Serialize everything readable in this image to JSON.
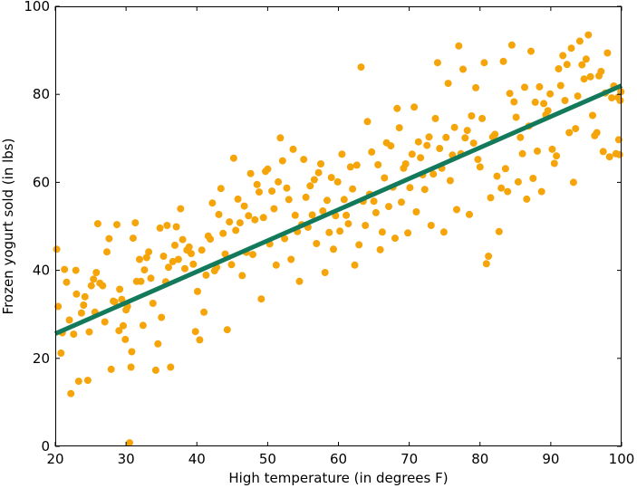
{
  "chart_data": {
    "type": "scatter",
    "title": "",
    "xlabel": "High temperature (in degrees F)",
    "ylabel": "Frozen yogurt sold (in lbs)",
    "xlim": [
      20,
      100
    ],
    "ylim": [
      0,
      100
    ],
    "xticks": [
      20,
      30,
      40,
      50,
      60,
      70,
      80,
      90,
      100
    ],
    "yticks": [
      0,
      20,
      40,
      60,
      80,
      100
    ],
    "grid": false,
    "legend": "none",
    "colors": {
      "points": "#f5a50a",
      "fit_line": "#13795b",
      "axes": "#000000"
    },
    "fit_line": {
      "x": [
        20,
        100
      ],
      "y": [
        25.6,
        82
      ]
    },
    "series": [
      {
        "points": [
          [
            20.2,
            44.8
          ],
          [
            20.4,
            31.8
          ],
          [
            20.8,
            21.2
          ],
          [
            21.0,
            25.8
          ],
          [
            21.3,
            40.2
          ],
          [
            21.6,
            37.3
          ],
          [
            22.0,
            28.7
          ],
          [
            22.2,
            12.0
          ],
          [
            22.6,
            25.5
          ],
          [
            22.9,
            40.0
          ],
          [
            23.0,
            34.6
          ],
          [
            23.3,
            14.8
          ],
          [
            23.7,
            30.3
          ],
          [
            24.0,
            32.1
          ],
          [
            24.2,
            34.0
          ],
          [
            24.6,
            15.0
          ],
          [
            24.8,
            26.0
          ],
          [
            25.1,
            36.5
          ],
          [
            25.4,
            38.0
          ],
          [
            25.6,
            30.5
          ],
          [
            25.8,
            39.5
          ],
          [
            26.0,
            50.6
          ],
          [
            26.3,
            37.1
          ],
          [
            26.7,
            36.5
          ],
          [
            27.0,
            28.3
          ],
          [
            27.3,
            44.2
          ],
          [
            27.6,
            47.2
          ],
          [
            27.9,
            17.5
          ],
          [
            28.2,
            33.0
          ],
          [
            28.4,
            32.8
          ],
          [
            28.7,
            50.4
          ],
          [
            29.0,
            26.3
          ],
          [
            29.1,
            35.7
          ],
          [
            29.4,
            33.4
          ],
          [
            29.6,
            27.4
          ],
          [
            29.9,
            24.3
          ],
          [
            30.0,
            31.0
          ],
          [
            30.2,
            31.8
          ],
          [
            30.5,
            0.8
          ],
          [
            30.7,
            18.0
          ],
          [
            30.8,
            21.5
          ],
          [
            31.0,
            47.3
          ],
          [
            31.3,
            50.8
          ],
          [
            31.5,
            37.5
          ],
          [
            31.9,
            42.5
          ],
          [
            32.1,
            37.5
          ],
          [
            32.4,
            27.5
          ],
          [
            32.6,
            40.1
          ],
          [
            32.9,
            42.9
          ],
          [
            33.2,
            44.2
          ],
          [
            33.5,
            38.2
          ],
          [
            33.8,
            32.5
          ],
          [
            34.2,
            17.3
          ],
          [
            34.5,
            23.3
          ],
          [
            34.8,
            49.6
          ],
          [
            35.0,
            29.3
          ],
          [
            35.3,
            43.2
          ],
          [
            35.6,
            37.4
          ],
          [
            35.8,
            50.2
          ],
          [
            36.0,
            40.7
          ],
          [
            36.3,
            18.0
          ],
          [
            36.6,
            42.0
          ],
          [
            36.9,
            45.7
          ],
          [
            37.1,
            49.9
          ],
          [
            37.4,
            42.5
          ],
          [
            37.7,
            54.0
          ],
          [
            38.0,
            47.0
          ],
          [
            38.3,
            40.4
          ],
          [
            38.6,
            44.6
          ],
          [
            38.9,
            45.3
          ],
          [
            39.2,
            43.8
          ],
          [
            39.5,
            41.4
          ],
          [
            39.8,
            26.1
          ],
          [
            40.1,
            35.2
          ],
          [
            40.4,
            24.2
          ],
          [
            40.7,
            44.6
          ],
          [
            41.0,
            30.5
          ],
          [
            41.3,
            38.9
          ],
          [
            41.6,
            47.8
          ],
          [
            41.9,
            47.1
          ],
          [
            42.2,
            55.3
          ],
          [
            42.5,
            39.9
          ],
          [
            42.8,
            40.7
          ],
          [
            43.1,
            52.7
          ],
          [
            43.4,
            58.6
          ],
          [
            43.7,
            48.4
          ],
          [
            44.0,
            43.7
          ],
          [
            44.3,
            26.5
          ],
          [
            44.6,
            51.0
          ],
          [
            44.9,
            41.3
          ],
          [
            45.2,
            65.5
          ],
          [
            45.5,
            49.1
          ],
          [
            45.8,
            56.2
          ],
          [
            46.1,
            50.8
          ],
          [
            46.4,
            38.8
          ],
          [
            46.7,
            54.6
          ],
          [
            47.0,
            44.1
          ],
          [
            47.3,
            52.4
          ],
          [
            47.6,
            62.0
          ],
          [
            47.9,
            43.6
          ],
          [
            48.2,
            51.5
          ],
          [
            48.5,
            59.5
          ],
          [
            48.8,
            57.8
          ],
          [
            49.1,
            33.5
          ],
          [
            49.4,
            52.0
          ],
          [
            49.7,
            62.5
          ],
          [
            50.0,
            63.0
          ],
          [
            50.3,
            46.0
          ],
          [
            50.6,
            58.0
          ],
          [
            50.9,
            54.0
          ],
          [
            51.2,
            41.2
          ],
          [
            51.5,
            60.1
          ],
          [
            51.8,
            70.1
          ],
          [
            52.1,
            64.9
          ],
          [
            52.4,
            47.2
          ],
          [
            52.7,
            58.7
          ],
          [
            53.0,
            56.1
          ],
          [
            53.3,
            42.5
          ],
          [
            53.6,
            67.5
          ],
          [
            53.9,
            52.5
          ],
          [
            54.2,
            48.8
          ],
          [
            54.5,
            37.5
          ],
          [
            54.8,
            50.4
          ],
          [
            55.1,
            65.2
          ],
          [
            55.4,
            56.6
          ],
          [
            55.7,
            49.8
          ],
          [
            56.0,
            59.2
          ],
          [
            56.3,
            52.6
          ],
          [
            56.6,
            60.6
          ],
          [
            56.9,
            46.1
          ],
          [
            57.2,
            62.2
          ],
          [
            57.5,
            64.2
          ],
          [
            57.8,
            53.5
          ],
          [
            58.1,
            39.5
          ],
          [
            58.4,
            55.9
          ],
          [
            58.7,
            48.6
          ],
          [
            59.0,
            61.1
          ],
          [
            59.3,
            44.8
          ],
          [
            59.6,
            52.4
          ],
          [
            59.9,
            60.1
          ],
          [
            60.2,
            48.9
          ],
          [
            60.5,
            66.4
          ],
          [
            60.8,
            56.1
          ],
          [
            61.1,
            52.5
          ],
          [
            61.4,
            50.6
          ],
          [
            61.7,
            63.5
          ],
          [
            62.0,
            58.5
          ],
          [
            62.3,
            41.2
          ],
          [
            62.6,
            63.9
          ],
          [
            62.9,
            45.8
          ],
          [
            63.2,
            86.2
          ],
          [
            63.5,
            55.7
          ],
          [
            63.8,
            50.2
          ],
          [
            64.1,
            73.8
          ],
          [
            64.4,
            57.3
          ],
          [
            64.7,
            66.9
          ],
          [
            65.0,
            55.7
          ],
          [
            65.3,
            53.1
          ],
          [
            65.6,
            64.0
          ],
          [
            65.9,
            44.7
          ],
          [
            66.2,
            48.7
          ],
          [
            66.5,
            61.0
          ],
          [
            66.8,
            69.0
          ],
          [
            67.1,
            54.5
          ],
          [
            67.4,
            68.3
          ],
          [
            67.7,
            58.9
          ],
          [
            68.0,
            47.3
          ],
          [
            68.3,
            76.8
          ],
          [
            68.6,
            72.4
          ],
          [
            68.9,
            55.5
          ],
          [
            69.2,
            63.2
          ],
          [
            69.5,
            64.2
          ],
          [
            69.8,
            48.5
          ],
          [
            70.1,
            58.8
          ],
          [
            70.4,
            66.4
          ],
          [
            70.7,
            77.1
          ],
          [
            71.0,
            53.3
          ],
          [
            71.3,
            69.2
          ],
          [
            71.6,
            65.6
          ],
          [
            71.9,
            61.7
          ],
          [
            72.2,
            58.4
          ],
          [
            72.5,
            68.4
          ],
          [
            72.8,
            70.3
          ],
          [
            73.1,
            50.2
          ],
          [
            73.4,
            61.9
          ],
          [
            73.7,
            74.5
          ],
          [
            74.0,
            87.2
          ],
          [
            74.3,
            67.7
          ],
          [
            74.6,
            63.2
          ],
          [
            74.9,
            48.7
          ],
          [
            75.2,
            70.2
          ],
          [
            75.5,
            82.5
          ],
          [
            75.8,
            60.4
          ],
          [
            76.1,
            66.2
          ],
          [
            76.4,
            72.5
          ],
          [
            76.7,
            53.8
          ],
          [
            77.0,
            91.0
          ],
          [
            77.3,
            66.5
          ],
          [
            77.6,
            85.7
          ],
          [
            77.9,
            70.1
          ],
          [
            78.2,
            71.8
          ],
          [
            78.5,
            52.7
          ],
          [
            78.8,
            75.1
          ],
          [
            79.1,
            68.9
          ],
          [
            79.4,
            81.5
          ],
          [
            79.7,
            65.2
          ],
          [
            80.0,
            63.5
          ],
          [
            80.3,
            74.5
          ],
          [
            80.6,
            87.2
          ],
          [
            80.9,
            41.5
          ],
          [
            81.2,
            43.2
          ],
          [
            81.5,
            56.5
          ],
          [
            81.8,
            70.3
          ],
          [
            82.1,
            70.9
          ],
          [
            82.4,
            61.4
          ],
          [
            82.7,
            48.8
          ],
          [
            83.0,
            58.7
          ],
          [
            83.3,
            87.5
          ],
          [
            83.6,
            63.1
          ],
          [
            83.9,
            57.9
          ],
          [
            84.2,
            80.2
          ],
          [
            84.5,
            91.2
          ],
          [
            84.8,
            78.3
          ],
          [
            85.1,
            74.8
          ],
          [
            85.4,
            60.1
          ],
          [
            85.7,
            70.2
          ],
          [
            86.0,
            66.5
          ],
          [
            86.3,
            81.6
          ],
          [
            86.6,
            56.2
          ],
          [
            86.9,
            72.8
          ],
          [
            87.2,
            89.8
          ],
          [
            87.5,
            60.9
          ],
          [
            87.8,
            78.2
          ],
          [
            88.1,
            67.1
          ],
          [
            88.4,
            81.7
          ],
          [
            88.7,
            57.9
          ],
          [
            89.0,
            77.9
          ],
          [
            89.3,
            75.3
          ],
          [
            89.6,
            76.3
          ],
          [
            89.9,
            80.1
          ],
          [
            90.2,
            67.5
          ],
          [
            90.5,
            64.3
          ],
          [
            90.8,
            66.0
          ],
          [
            91.1,
            85.8
          ],
          [
            91.4,
            82.0
          ],
          [
            91.7,
            88.8
          ],
          [
            92.0,
            78.6
          ],
          [
            92.3,
            86.8
          ],
          [
            92.6,
            71.3
          ],
          [
            92.9,
            90.5
          ],
          [
            93.2,
            60.0
          ],
          [
            93.5,
            72.2
          ],
          [
            93.8,
            79.6
          ],
          [
            94.1,
            92.1
          ],
          [
            94.4,
            86.7
          ],
          [
            94.7,
            83.5
          ],
          [
            95.0,
            88.0
          ],
          [
            95.3,
            93.5
          ],
          [
            95.6,
            84.0
          ],
          [
            95.9,
            75.2
          ],
          [
            96.2,
            70.6
          ],
          [
            96.5,
            71.3
          ],
          [
            96.8,
            84.2
          ],
          [
            97.1,
            85.2
          ],
          [
            97.4,
            67.0
          ],
          [
            97.7,
            80.3
          ],
          [
            98.0,
            89.4
          ],
          [
            98.3,
            65.8
          ],
          [
            98.6,
            79.2
          ],
          [
            98.9,
            81.9
          ],
          [
            99.2,
            66.5
          ],
          [
            99.5,
            79.3
          ],
          [
            99.7,
            66.3
          ],
          [
            99.9,
            80.6
          ],
          [
            99.8,
            78.6
          ],
          [
            99.6,
            69.7
          ]
        ]
      }
    ]
  }
}
